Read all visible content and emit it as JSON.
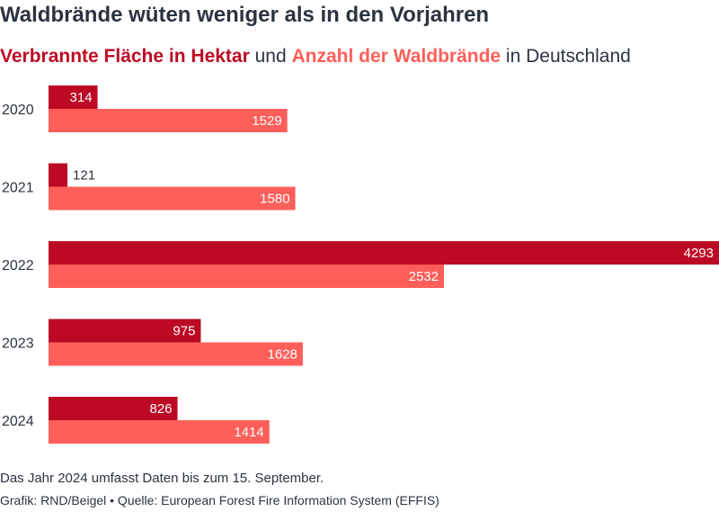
{
  "title": "Waldbrände wüten weniger als in den Vorjahren",
  "subtitle": {
    "series1": "Verbrannte Fläche in Hektar",
    "joiner": " und ",
    "series2": "Anzahl der Waldbrände",
    "suffix": " in Deutschland"
  },
  "colors": {
    "series1": "#bd0a24",
    "series2": "#ff5f5a",
    "text": "#2b3440"
  },
  "chart_data": {
    "type": "bar",
    "orientation": "horizontal",
    "categories": [
      "2020",
      "2021",
      "2022",
      "2023",
      "2024"
    ],
    "series": [
      {
        "name": "Verbrannte Fläche in Hektar",
        "values": [
          314,
          121,
          4293,
          975,
          826
        ]
      },
      {
        "name": "Anzahl der Waldbrände",
        "values": [
          1529,
          1580,
          2532,
          1628,
          1414
        ]
      }
    ],
    "xlim": [
      0,
      4293
    ],
    "grid": false,
    "legend": "subtitle"
  },
  "footer": {
    "note": "Das Jahr 2024 umfasst Daten bis zum 15. September.",
    "credit": "Grafik: RND/Beigel • Quelle: European Forest Fire Information System (EFFIS)"
  }
}
